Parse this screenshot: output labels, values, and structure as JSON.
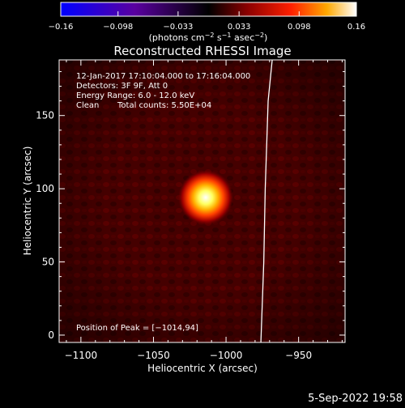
{
  "chart_data": {
    "type": "heatmap",
    "title": "Reconstructed RHESSI Image",
    "xlabel": "Heliocentric X (arcsec)",
    "ylabel": "Heliocentric Y (arcsec)",
    "xlim": [
      -1115,
      -918
    ],
    "ylim": [
      -5,
      188
    ],
    "x_ticks": [
      -1100,
      -1050,
      -1000,
      -950
    ],
    "x_tick_labels": [
      "−1100",
      "−1050",
      "−1000",
      "−950"
    ],
    "y_ticks": [
      0,
      50,
      100,
      150
    ],
    "y_tick_labels": [
      "0",
      "50",
      "100",
      "150"
    ],
    "colorbar": {
      "range": [
        -0.16,
        0.16
      ],
      "ticks": [
        -0.16,
        -0.098,
        -0.033,
        0.033,
        0.098,
        0.16
      ],
      "tick_labels": [
        "−0.16",
        "−0.098",
        "−0.033",
        "0.033",
        "0.098",
        "0.16"
      ],
      "colors": [
        "#0000ff",
        "#5a00a0",
        "#000000",
        "#8a0000",
        "#ff2000",
        "#ffa800",
        "#ffffff"
      ]
    },
    "annotations": {
      "time": "12-Jan-2017 17:10:04.000 to 17:16:04.000",
      "detectors": "Detectors: 3F 9F, Att 0",
      "energy": "Energy Range: 6.0 - 12.0 keV",
      "clean": "Clean",
      "counts": "Total counts: 5.50E+04",
      "peak_label": "Position of Peak = [−1014,94]"
    },
    "peak": {
      "x": -1014,
      "y": 94
    },
    "limb_curve": [
      [
        -968,
        190
      ],
      [
        -971,
        160
      ],
      [
        -973,
        100
      ],
      [
        -974,
        50
      ],
      [
        -976,
        -5
      ]
    ]
  },
  "timestamp": "5-Sep-2022 19:58"
}
